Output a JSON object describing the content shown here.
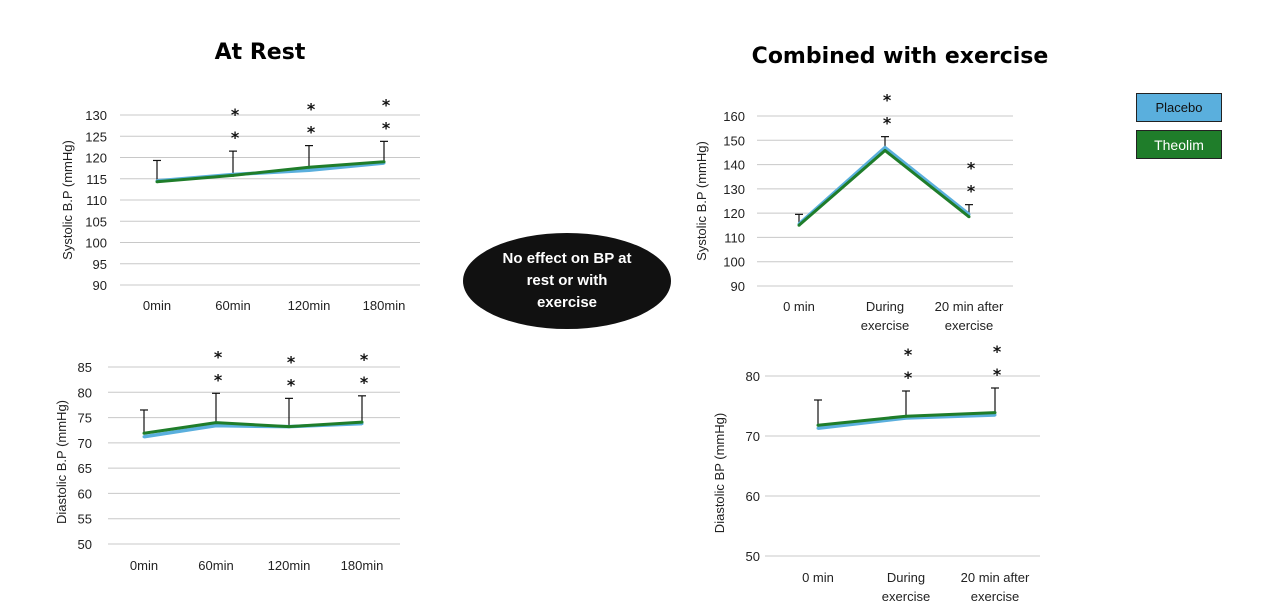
{
  "titles": {
    "rest": "At Rest",
    "exercise": "Combined with exercise"
  },
  "callout": "No effect on BP at rest or with exercise",
  "legend": [
    {
      "name": "Placebo",
      "color": "#5aafdd"
    },
    {
      "name": "Theolim",
      "color": "#1f7d2a"
    }
  ],
  "chart_data": [
    {
      "type": "line",
      "group": "At Rest",
      "ylabel": "Systolic B.P (mmHg)",
      "categories": [
        "0min",
        "60min",
        "120min",
        "180min"
      ],
      "yticks": [
        90,
        95,
        100,
        105,
        110,
        115,
        120,
        125,
        130
      ],
      "ylim": [
        90,
        130
      ],
      "series": [
        {
          "name": "Placebo",
          "values": [
            114.5,
            116.0,
            117.0,
            118.7
          ]
        },
        {
          "name": "Theolim",
          "values": [
            114.3,
            115.8,
            117.7,
            119.0
          ]
        }
      ],
      "error_tops": [
        119.3,
        121.5,
        122.8,
        123.8
      ],
      "annotations": [
        {
          "category": "60min",
          "text": [
            "*",
            "*"
          ]
        },
        {
          "category": "120min",
          "text": [
            "*",
            "*"
          ]
        },
        {
          "category": "180min",
          "text": [
            "*",
            "*"
          ]
        }
      ],
      "grid": true
    },
    {
      "type": "line",
      "group": "At Rest",
      "ylabel": "Diastolic B.P (mmHg)",
      "categories": [
        "0min",
        "60min",
        "120min",
        "180min"
      ],
      "yticks": [
        50,
        55,
        60,
        65,
        70,
        75,
        80,
        85
      ],
      "ylim": [
        50,
        85
      ],
      "series": [
        {
          "name": "Placebo",
          "values": [
            71.2,
            73.4,
            73.2,
            73.8
          ]
        },
        {
          "name": "Theolim",
          "values": [
            71.9,
            74.0,
            73.2,
            74.1
          ]
        }
      ],
      "error_tops": [
        76.5,
        79.8,
        78.8,
        79.3
      ],
      "annotations": [
        {
          "category": "60min",
          "text": [
            "*",
            "*"
          ]
        },
        {
          "category": "120min",
          "text": [
            "*",
            "*"
          ]
        },
        {
          "category": "180min",
          "text": [
            "*",
            "*"
          ]
        }
      ],
      "grid": true
    },
    {
      "type": "line",
      "group": "Combined with exercise",
      "ylabel": "Systolic B.P (mmHg)",
      "categories": [
        "0 min",
        "During exercise",
        "20 min after exercise"
      ],
      "yticks": [
        90,
        100,
        110,
        120,
        130,
        140,
        150,
        160
      ],
      "ylim": [
        90,
        160
      ],
      "series": [
        {
          "name": "Placebo",
          "values": [
            115.5,
            147.0,
            119.5
          ]
        },
        {
          "name": "Theolim",
          "values": [
            115.0,
            145.8,
            118.5
          ]
        }
      ],
      "error_tops": [
        119.5,
        151.5,
        123.5
      ],
      "annotations": [
        {
          "category": "During exercise",
          "text": [
            "*",
            "*"
          ]
        },
        {
          "category": "20 min after exercise",
          "text": [
            "*",
            "*"
          ]
        }
      ],
      "grid": true
    },
    {
      "type": "line",
      "group": "Combined with exercise",
      "ylabel": "Diastolic BP (mmHg)",
      "categories": [
        "0 min",
        "During exercise",
        "20 min after exercise"
      ],
      "yticks": [
        50,
        60,
        70,
        80
      ],
      "ylim": [
        50,
        80
      ],
      "series": [
        {
          "name": "Placebo",
          "values": [
            71.3,
            73.0,
            73.5
          ]
        },
        {
          "name": "Theolim",
          "values": [
            71.8,
            73.3,
            73.9
          ]
        }
      ],
      "error_tops": [
        76.0,
        77.5,
        78.0
      ],
      "annotations": [
        {
          "category": "During exercise",
          "text": [
            "*",
            "*"
          ]
        },
        {
          "category": "20 min after exercise",
          "text": [
            "*",
            "*"
          ]
        }
      ],
      "grid": true
    }
  ]
}
